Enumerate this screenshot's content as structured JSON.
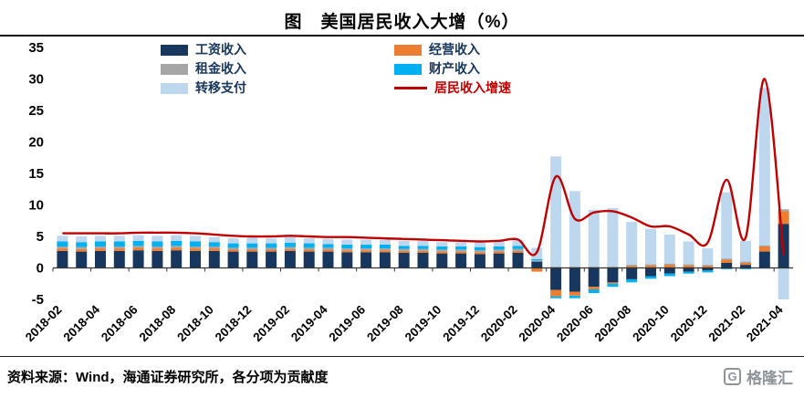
{
  "footer": {
    "source": "资料来源：Wind，海通证券研究所，各分项为贡献度",
    "logo_text": "格隆汇",
    "logo_glyph": "G"
  },
  "chart_data": {
    "type": "bar",
    "stacked": true,
    "has_line_overlay": true,
    "title": "图　美国居民收入大增（%）",
    "xlabel": "",
    "ylabel": "",
    "ylim": [
      -5,
      35
    ],
    "y_ticks": [
      35,
      30,
      25,
      20,
      15,
      10,
      5,
      0,
      -5
    ],
    "grid": false,
    "legend_position": "top-inside",
    "categories": [
      "2018-02",
      "2018-03",
      "2018-04",
      "2018-05",
      "2018-06",
      "2018-07",
      "2018-08",
      "2018-09",
      "2018-10",
      "2018-11",
      "2018-12",
      "2019-01",
      "2019-02",
      "2019-03",
      "2019-04",
      "2019-05",
      "2019-06",
      "2019-07",
      "2019-08",
      "2019-09",
      "2019-10",
      "2019-11",
      "2019-12",
      "2020-01",
      "2020-02",
      "2020-03",
      "2020-04",
      "2020-05",
      "2020-06",
      "2020-07",
      "2020-08",
      "2020-09",
      "2020-10",
      "2020-11",
      "2020-12",
      "2021-01",
      "2021-02",
      "2021-03",
      "2021-04"
    ],
    "x_tick_step": 2,
    "series": [
      {
        "name": "工资收入",
        "color": "#17375E",
        "values": [
          2.7,
          2.6,
          2.7,
          2.7,
          2.8,
          2.7,
          2.8,
          2.7,
          2.7,
          2.6,
          2.6,
          2.6,
          2.7,
          2.6,
          2.6,
          2.5,
          2.5,
          2.5,
          2.4,
          2.4,
          2.3,
          2.3,
          2.2,
          2.3,
          2.4,
          1.0,
          -3.5,
          -3.8,
          -3.0,
          -2.3,
          -1.8,
          -1.3,
          -0.9,
          -0.6,
          -0.4,
          0.8,
          0.5,
          2.6,
          7.0
        ]
      },
      {
        "name": "经营收入",
        "color": "#ED7D31",
        "values": [
          0.4,
          0.4,
          0.4,
          0.4,
          0.4,
          0.4,
          0.4,
          0.4,
          0.4,
          0.3,
          0.3,
          0.3,
          0.3,
          0.3,
          0.3,
          0.3,
          0.3,
          0.3,
          0.3,
          0.3,
          0.3,
          0.3,
          0.3,
          0.3,
          0.3,
          -0.6,
          -1.0,
          -0.6,
          -0.4,
          -0.2,
          0.3,
          0.4,
          0.5,
          0.4,
          0.3,
          0.5,
          0.3,
          0.8,
          2.0
        ]
      },
      {
        "name": "租金收入",
        "color": "#A6A6A6",
        "values": [
          0.3,
          0.3,
          0.3,
          0.3,
          0.3,
          0.3,
          0.3,
          0.3,
          0.3,
          0.3,
          0.3,
          0.3,
          0.3,
          0.3,
          0.3,
          0.3,
          0.3,
          0.3,
          0.3,
          0.3,
          0.3,
          0.3,
          0.3,
          0.3,
          0.3,
          0.2,
          0.2,
          0.2,
          0.2,
          0.2,
          0.2,
          0.2,
          0.2,
          0.2,
          0.2,
          0.2,
          0.2,
          0.2,
          0.3
        ]
      },
      {
        "name": "财产收入",
        "color": "#00B0F0",
        "values": [
          0.8,
          0.8,
          0.8,
          0.8,
          0.8,
          0.8,
          0.8,
          0.8,
          0.7,
          0.7,
          0.7,
          0.7,
          0.7,
          0.7,
          0.6,
          0.6,
          0.6,
          0.6,
          0.5,
          0.5,
          0.5,
          0.5,
          0.5,
          0.5,
          0.5,
          0.2,
          -0.3,
          -0.4,
          -0.6,
          -0.5,
          -0.5,
          -0.4,
          -0.4,
          -0.3,
          -0.3,
          -0.2,
          -0.2,
          -0.1,
          0.0
        ]
      },
      {
        "name": "转移支付",
        "color": "#BDD7EE",
        "values": [
          0.9,
          0.9,
          0.9,
          0.9,
          0.9,
          0.9,
          0.9,
          0.9,
          0.8,
          0.8,
          0.9,
          0.8,
          0.9,
          0.8,
          0.8,
          0.8,
          0.8,
          0.8,
          0.8,
          0.8,
          0.7,
          0.7,
          0.8,
          0.8,
          0.9,
          1.8,
          17.5,
          12.0,
          9.0,
          9.3,
          6.8,
          5.6,
          4.6,
          3.6,
          2.6,
          10.5,
          3.3,
          25.0,
          -5.0
        ]
      }
    ],
    "line_series": {
      "name": "居民收入增速",
      "color": "#C00000",
      "values": [
        5.5,
        5.5,
        5.5,
        5.5,
        5.6,
        5.6,
        5.6,
        5.5,
        5.3,
        5.1,
        5.0,
        5.0,
        5.1,
        5.0,
        4.9,
        4.9,
        4.8,
        4.7,
        4.6,
        4.5,
        4.4,
        4.3,
        4.2,
        4.3,
        4.5,
        2.5,
        14.5,
        7.8,
        8.8,
        9.0,
        8.0,
        6.6,
        6.6,
        5.3,
        4.0,
        14.0,
        4.8,
        30.0,
        2.0
      ]
    }
  }
}
